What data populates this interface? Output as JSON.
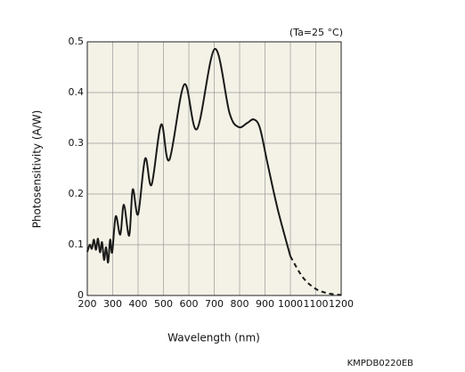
{
  "chart_data": {
    "type": "line",
    "annotation": "(Ta=25 °C)",
    "code": "KMPDB0220EB",
    "x_label": "Wavelength (nm)",
    "y_label": "Photosensitivity (A/W)",
    "xlim": [
      200,
      1200
    ],
    "ylim": [
      0,
      0.5
    ],
    "xticks": [
      200,
      300,
      400,
      500,
      600,
      700,
      800,
      900,
      1000,
      1100,
      1200
    ],
    "yticks": [
      0,
      0.1,
      0.2,
      0.3,
      0.4,
      0.5
    ],
    "grid": true,
    "background": "#f4f2e6",
    "series": [
      {
        "color": "#1a1a1a",
        "dashed": false,
        "x": [
          200,
          210,
          218,
          226,
          234,
          242,
          250,
          258,
          266,
          274,
          282,
          290,
          298,
          312,
          330,
          344,
          365,
          379,
          400,
          428,
          453,
          491,
          523,
          582,
          632,
          702,
          760,
          796,
          830,
          856,
          880,
          910,
          950,
          1000
        ],
        "values": [
          0.086,
          0.1,
          0.092,
          0.11,
          0.09,
          0.112,
          0.085,
          0.105,
          0.07,
          0.095,
          0.065,
          0.11,
          0.085,
          0.156,
          0.12,
          0.179,
          0.118,
          0.209,
          0.16,
          0.27,
          0.218,
          0.337,
          0.267,
          0.416,
          0.328,
          0.486,
          0.36,
          0.332,
          0.34,
          0.347,
          0.33,
          0.26,
          0.17,
          0.077
        ]
      },
      {
        "color": "#1a1a1a",
        "dashed": true,
        "x": [
          1000,
          1050,
          1100,
          1150,
          1200
        ],
        "values": [
          0.077,
          0.035,
          0.013,
          0.004,
          0.001
        ]
      }
    ]
  }
}
